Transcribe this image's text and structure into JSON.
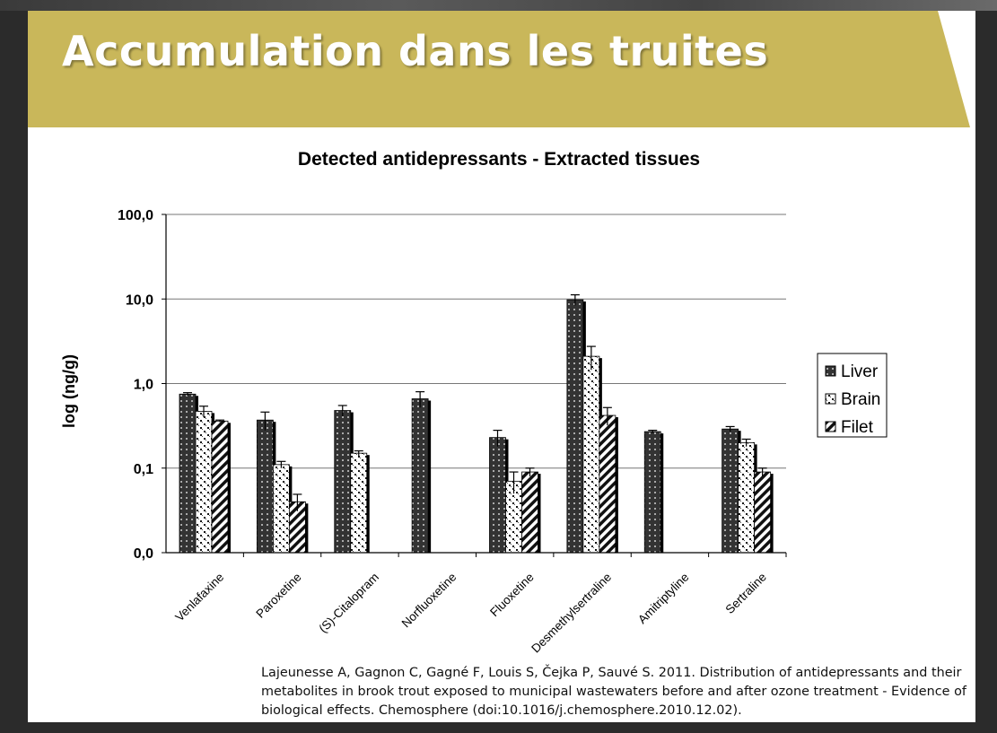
{
  "slide": {
    "title": "Accumulation dans les truites",
    "citation": "Lajeunesse A, Gagnon C, Gagné F, Louis S, Čejka P, Sauvé S. 2011. Distribution of antidepressants and their metabolites in brook trout exposed to municipal wastewaters before and after ozone treatment - Evidence of biological effects. Chemosphere (doi:10.1016/j.chemosphere.2010.12.02)."
  },
  "colors": {
    "banner": "#c9b75a",
    "liver": "#333333",
    "brain": "#ffffff",
    "filet": "#ffffff",
    "pattern": "#111111"
  },
  "chart_data": {
    "type": "bar",
    "title": "Detected antidepressants - Extracted tissues",
    "ylabel": "log (ng/g)",
    "xlabel": "",
    "y_scale": "log",
    "ylim": [
      0.01,
      100
    ],
    "y_ticks": [
      {
        "value": 0.01,
        "label": "0,0"
      },
      {
        "value": 0.1,
        "label": "0,1"
      },
      {
        "value": 1,
        "label": "1,0"
      },
      {
        "value": 10,
        "label": "10,0"
      },
      {
        "value": 100,
        "label": "100,0"
      }
    ],
    "grid": true,
    "legend": "right",
    "categories": [
      "Venlafaxine",
      "Paroxetine",
      "(S)-Citalopram",
      "Norfluoxetine",
      "Fluoxetine",
      "Desmethylsertraline",
      "Amitriptyline",
      "Sertraline"
    ],
    "series": [
      {
        "name": "Liver",
        "pattern": "dots-dark",
        "values": [
          0.75,
          0.37,
          0.48,
          0.66,
          0.23,
          9.8,
          0.27,
          0.29
        ],
        "errors": [
          0.03,
          0.09,
          0.07,
          0.14,
          0.05,
          1.4,
          0.01,
          0.02
        ]
      },
      {
        "name": "Brain",
        "pattern": "checker",
        "values": [
          0.47,
          0.11,
          0.15,
          null,
          0.07,
          2.1,
          null,
          0.2
        ],
        "errors": [
          0.07,
          0.01,
          0.01,
          null,
          0.02,
          0.65,
          null,
          0.02
        ]
      },
      {
        "name": "Filet",
        "pattern": "stripes",
        "values": [
          0.36,
          0.04,
          null,
          null,
          0.09,
          0.42,
          null,
          0.09
        ],
        "errors": [
          0.01,
          0.009,
          null,
          null,
          0.01,
          0.1,
          null,
          0.01
        ]
      }
    ]
  }
}
